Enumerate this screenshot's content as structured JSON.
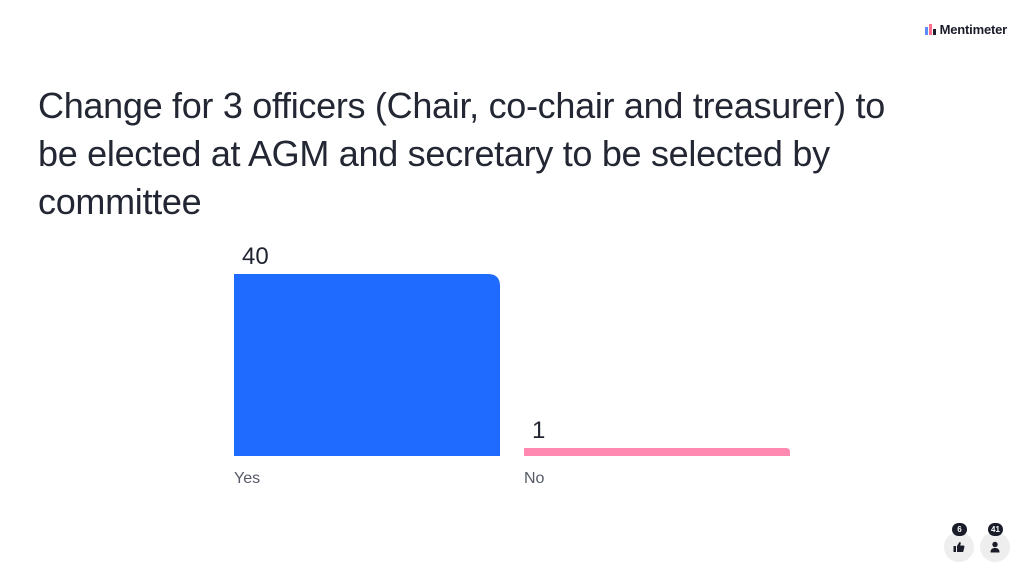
{
  "brand": {
    "name": "Mentimeter"
  },
  "question": {
    "title": "Change for 3 officers (Chair, co-chair and treasurer) to be elected at AGM and secretary to be selected by committee"
  },
  "chart_data": {
    "type": "bar",
    "title": "Change for 3 officers (Chair, co-chair and treasurer) to be elected at AGM and secretary to be selected by committee",
    "categories": [
      "Yes",
      "No"
    ],
    "values": [
      40,
      1
    ],
    "colors": [
      "#1f6aff",
      "#ff89b1"
    ],
    "xlabel": "",
    "ylabel": "",
    "ylim": [
      0,
      40
    ],
    "grid": false,
    "legend": "none"
  },
  "footer": {
    "likes_count": "6",
    "participants_count": "41",
    "likes_icon": "thumbs-up-icon",
    "participants_icon": "person-icon"
  }
}
